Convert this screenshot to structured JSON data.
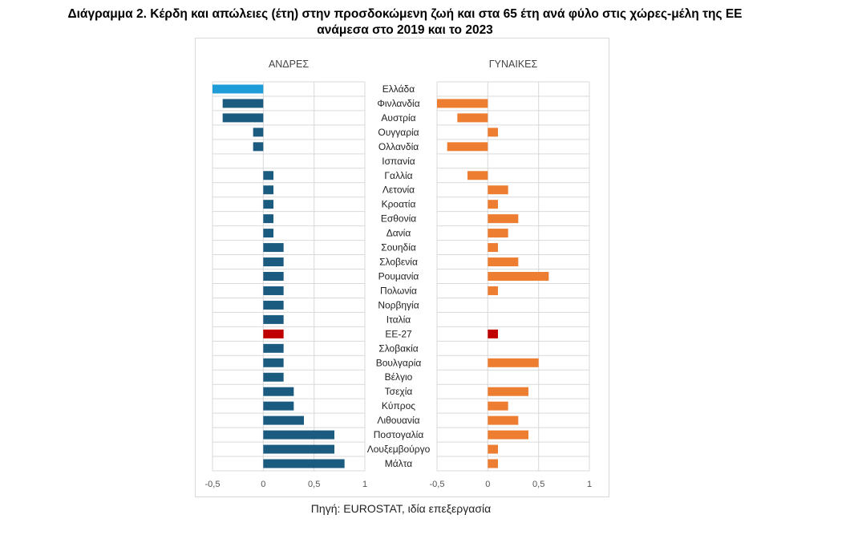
{
  "title_line1": "Διάγραμμα 2. Κέρδη και απώλειες (έτη) στην προσδοκώμενη ζωή και στα 65 έτη ανά φύλο στις χώρες-μέλη της ΕΕ",
  "title_line2": "ανάμεσα στο 2019 και το 2023",
  "source": "Πηγή: EUROSTAT, ιδία επεξεργασία",
  "chart_data": [
    {
      "type": "bar",
      "orientation": "horizontal",
      "title": "ΑΝΔΡΕΣ",
      "xlim": [
        -0.5,
        1
      ],
      "xticks": [
        "-0,5",
        "0",
        "0,5",
        "1"
      ],
      "grid": true,
      "categories": [
        "Ελλάδα",
        "Φινλανδία",
        "Αυστρία",
        "Ουγγαρία",
        "Ολλανδία",
        "Ισπανία",
        "Γαλλία",
        "Λετονία",
        "Κροατία",
        "Εσθονία",
        "Δανία",
        "Σουηδία",
        "Σλοβενία",
        "Ρουμανία",
        "Πολωνία",
        "Νορβηγία",
        "Ιταλία",
        "ΕΕ-27",
        "Σλοβακία",
        "Βουλγαρία",
        "Βέλγιο",
        "Τσεχία",
        "Κύπρος",
        "Λιθουανία",
        "Ποστογαλία",
        "Λουξεμβούργο",
        "Μάλτα"
      ],
      "values": [
        -0.5,
        -0.4,
        -0.4,
        -0.1,
        -0.1,
        0,
        0.1,
        0.1,
        0.1,
        0.1,
        0.1,
        0.2,
        0.2,
        0.2,
        0.2,
        0.2,
        0.2,
        0.2,
        0.2,
        0.2,
        0.2,
        0.3,
        0.3,
        0.4,
        0.7,
        0.7,
        0.8
      ],
      "color": "#1b5b80",
      "highlight": {
        "Ελλάδα": "#1f9bd7",
        "ΕΕ-27": "#c00000"
      }
    },
    {
      "type": "bar",
      "orientation": "horizontal",
      "title": "ΓΥΝΑΙΚΕΣ",
      "xlim": [
        -0.5,
        1
      ],
      "xticks": [
        "-0,5",
        "0",
        "0,5",
        "1"
      ],
      "grid": true,
      "categories": [
        "Ελλάδα",
        "Φινλανδία",
        "Αυστρία",
        "Ουγγαρία",
        "Ολλανδία",
        "Ισπανία",
        "Γαλλία",
        "Λετονία",
        "Κροατία",
        "Εσθονία",
        "Δανία",
        "Σουηδία",
        "Σλοβενία",
        "Ρουμανία",
        "Πολωνία",
        "Νορβηγία",
        "Ιταλία",
        "ΕΕ-27",
        "Σλοβακία",
        "Βουλγαρία",
        "Βέλγιο",
        "Τσεχία",
        "Κύπρος",
        "Λιθουανία",
        "Ποστογαλία",
        "Λουξεμβούργο",
        "Μάλτα"
      ],
      "values": [
        0,
        -0.5,
        -0.3,
        0.1,
        -0.4,
        0,
        -0.2,
        0.2,
        0.1,
        0.3,
        0.2,
        0.1,
        0.3,
        0.6,
        0.1,
        0,
        0,
        0.1,
        0,
        0.5,
        0,
        0.4,
        0.2,
        0.3,
        0.4,
        0.1,
        0.1
      ],
      "color": "#ed7d31",
      "highlight": {
        "ΕΕ-27": "#c00000"
      }
    }
  ]
}
